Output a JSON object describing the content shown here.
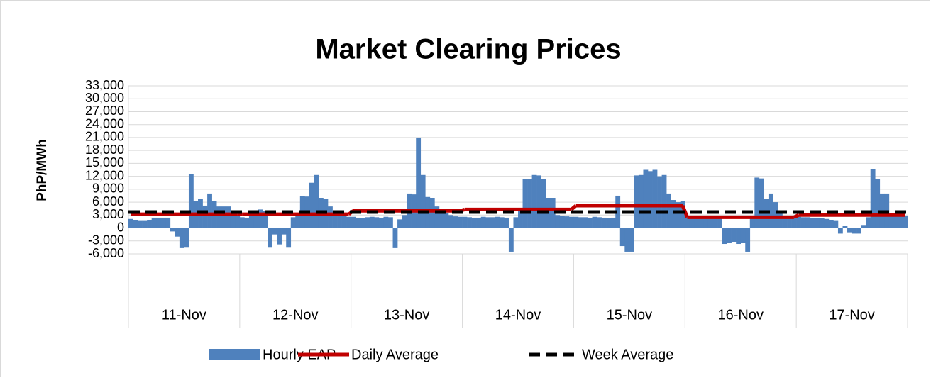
{
  "chart_data": {
    "type": "bar",
    "title": "Market Clearing Prices",
    "y_label": "PhP/MWh",
    "categories": [
      "11-Nov",
      "12-Nov",
      "13-Nov",
      "14-Nov",
      "15-Nov",
      "16-Nov",
      "17-Nov"
    ],
    "ylim": [
      -6000,
      33000
    ],
    "yticks": [
      {
        "value": 33000,
        "label": "33,000"
      },
      {
        "value": 30000,
        "label": "30,000"
      },
      {
        "value": 27000,
        "label": "27,000"
      },
      {
        "value": 24000,
        "label": "24,000"
      },
      {
        "value": 21000,
        "label": "21,000"
      },
      {
        "value": 18000,
        "label": "18,000"
      },
      {
        "value": 15000,
        "label": "15,000"
      },
      {
        "value": 12000,
        "label": "12,000"
      },
      {
        "value": 9000,
        "label": "9,000"
      },
      {
        "value": 6000,
        "label": "6,000"
      },
      {
        "value": 3000,
        "label": "3,000"
      },
      0,
      {
        "value": -3000,
        "label": "-3,000"
      },
      {
        "value": -6000,
        "label": "-6,000"
      }
    ],
    "grid": true,
    "legend": "bottom",
    "series": [
      {
        "name": "Hourly EAP",
        "type": "bar",
        "color": "#4f81bd",
        "values": [
          [
            2100,
            1900,
            1800,
            1800,
            1900,
            2400,
            2400,
            2400,
            2400,
            -800,
            -2000,
            -4500,
            -4400,
            12500,
            6300,
            6800,
            5200,
            8000,
            6300,
            5000,
            5000,
            5000,
            3800,
            3000
          ],
          [
            2500,
            2400,
            3000,
            3800,
            4300,
            4000,
            -4400,
            -1500,
            -3800,
            -1500,
            -4400,
            2500,
            2800,
            7400,
            7300,
            10500,
            12300,
            7000,
            6800,
            5000,
            4000,
            3200,
            2800,
            2600
          ],
          [
            2600,
            2400,
            2300,
            2500,
            2600,
            2500,
            2400,
            2600,
            2500,
            -4500,
            2000,
            3000,
            8000,
            7800,
            21000,
            12300,
            7200,
            7000,
            5000,
            4300,
            3400,
            3000,
            2700,
            2600
          ],
          [
            2600,
            2500,
            2400,
            2400,
            2600,
            2500,
            2500,
            2600,
            2500,
            2400,
            -5500,
            2500,
            4000,
            11300,
            11300,
            12300,
            12200,
            11300,
            7000,
            7000,
            3000,
            2800,
            2700,
            2600
          ],
          [
            2600,
            2500,
            2500,
            2400,
            2600,
            2500,
            2400,
            2300,
            2400,
            7500,
            -4200,
            -5500,
            -5500,
            12200,
            12300,
            13500,
            13200,
            13500,
            12000,
            12300,
            8000,
            6500,
            6000,
            6300
          ],
          [
            2600,
            2500,
            2400,
            2400,
            2500,
            2600,
            2400,
            2500,
            -3700,
            -3500,
            -3200,
            -3700,
            -3500,
            -5500,
            2400,
            11700,
            11500,
            6800,
            8000,
            6000,
            3500,
            2600,
            2500,
            2500
          ],
          [
            2600,
            2500,
            2500,
            2400,
            2400,
            2300,
            2100,
            1900,
            1800,
            -1300,
            500,
            -1000,
            -1300,
            -1300,
            700,
            2500,
            13700,
            11400,
            8000,
            8000,
            3200,
            3000,
            3000,
            2800
          ]
        ]
      },
      {
        "name": "Daily Average",
        "type": "step",
        "color": "#c00000",
        "values": [
          3200,
          3200,
          4000,
          4300,
          5200,
          2500,
          3000
        ]
      },
      {
        "name": "Week Average",
        "type": "dashed",
        "color": "#000000",
        "value": 3700
      }
    ]
  }
}
